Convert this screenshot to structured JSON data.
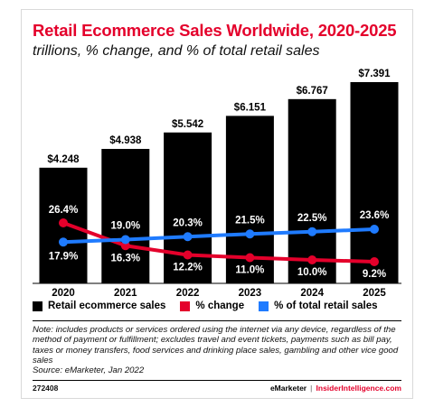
{
  "header": {
    "title": "Retail Ecommerce Sales Worldwide, 2020-2025",
    "subtitle": "trillions, % change, and % of total retail sales"
  },
  "chart_data": {
    "type": "bar",
    "categories": [
      "2020",
      "2021",
      "2022",
      "2023",
      "2024",
      "2025"
    ],
    "series": [
      {
        "name": "Retail ecommerce sales",
        "type": "bar",
        "color": "#000000",
        "values": [
          4.248,
          4.938,
          5.542,
          6.151,
          6.767,
          7.391
        ],
        "labels": [
          "$4.248",
          "$4.938",
          "$5.542",
          "$6.151",
          "$6.767",
          "$7.391"
        ]
      },
      {
        "name": "% change",
        "type": "line",
        "color": "#e4002b",
        "values": [
          26.4,
          16.3,
          12.2,
          11.0,
          10.0,
          9.2
        ],
        "labels": [
          "26.4%",
          "16.3%",
          "12.2%",
          "11.0%",
          "10.0%",
          "9.2%"
        ]
      },
      {
        "name": "% of total retail sales",
        "type": "line",
        "color": "#1f7bff",
        "values": [
          17.9,
          19.0,
          20.3,
          21.5,
          22.5,
          23.6
        ],
        "labels": [
          "17.9%",
          "19.0%",
          "20.3%",
          "21.5%",
          "22.5%",
          "23.6%"
        ]
      }
    ],
    "bar_ylim": [
      0,
      7.391
    ],
    "pct_ylim": [
      9.2,
      26.4
    ],
    "legend_position": "bottom",
    "grid": false
  },
  "footer": {
    "note": "Note: includes products or services ordered using the internet via any device, regardless of the method of payment or fulfillment; excludes travel and event tickets, payments such as bill pay, taxes or money transfers, food services and drinking place sales, gambling and other vice good sales",
    "source": "Source: eMarketer, Jan 2022",
    "chart_id": "272408",
    "brand": "eMarketer",
    "separator": "|",
    "brand_site": "InsiderIntelligence.com"
  }
}
